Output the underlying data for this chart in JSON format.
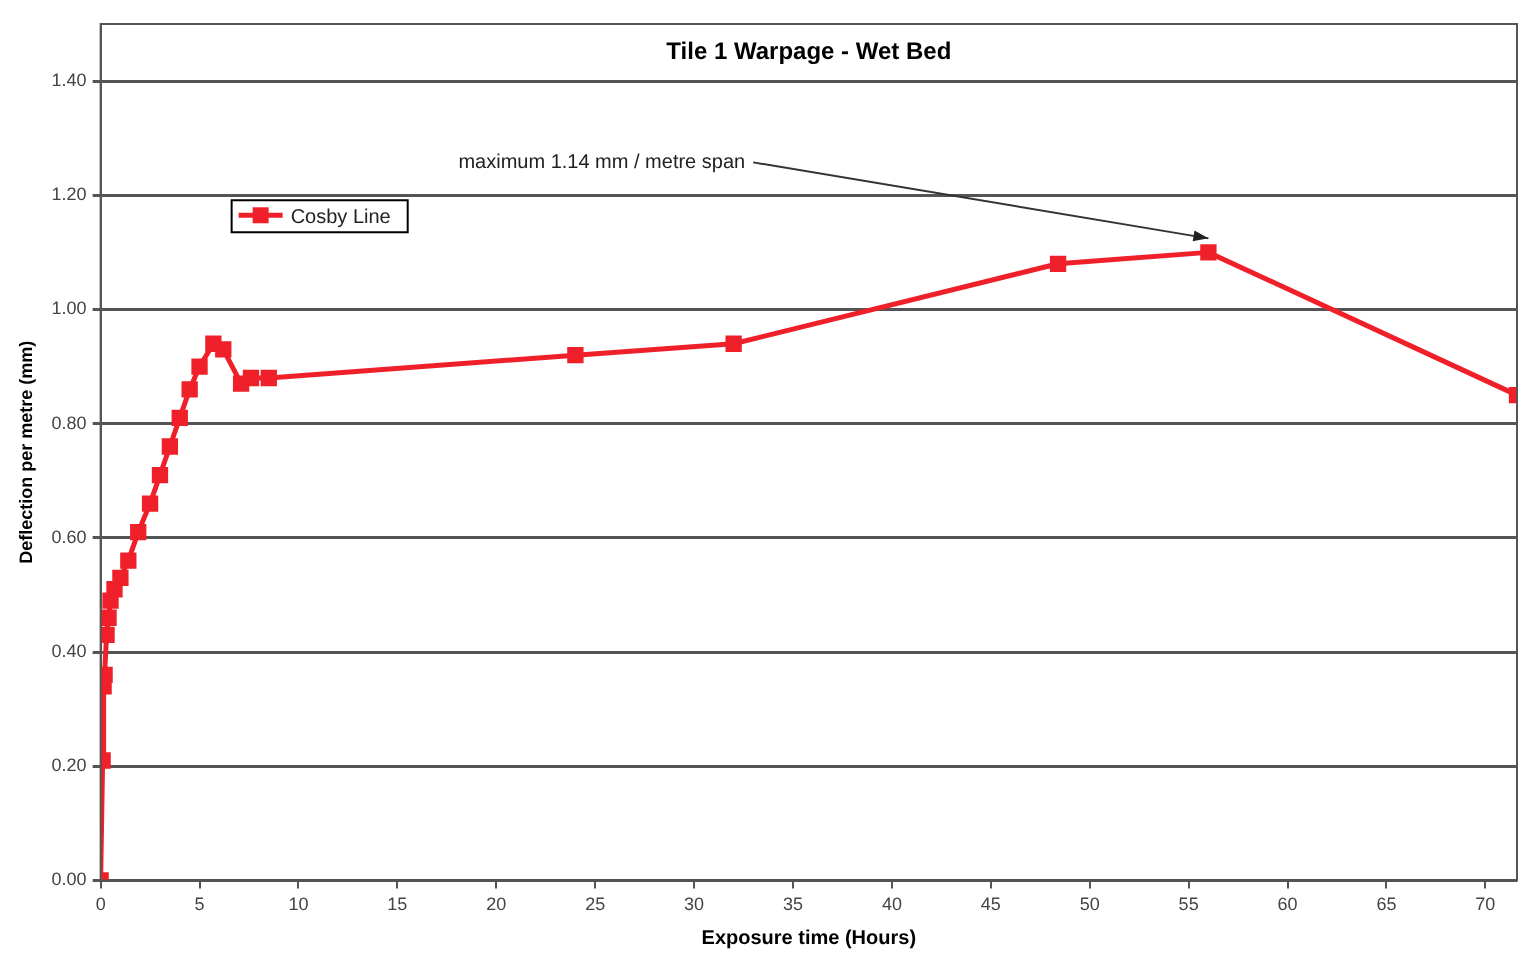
{
  "chart_data": {
    "type": "line",
    "title": "Tile 1 Warpage - Wet Bed",
    "xlabel": "Exposure time (Hours)",
    "ylabel": "Deflection per metre (mm)",
    "xlim": [
      0,
      71.6
    ],
    "xticks": [
      0,
      5,
      10,
      15,
      20,
      25,
      30,
      35,
      40,
      45,
      50,
      55,
      60,
      65,
      70
    ],
    "ylim": [
      0,
      1.5
    ],
    "yticks": [
      {
        "value": 0,
        "label": "0.00"
      },
      {
        "value": 0.2,
        "label": "0.20"
      },
      {
        "value": 0.4,
        "label": "0.40"
      },
      {
        "value": 0.6,
        "label": "0.60"
      },
      {
        "value": 0.8,
        "label": "0.80"
      },
      {
        "value": 1.0,
        "label": "1.00"
      },
      {
        "value": 1.2,
        "label": "1.20"
      },
      {
        "value": 1.4,
        "label": "1.40"
      }
    ],
    "grid": "y",
    "legend": "top left",
    "marker": "square",
    "line_style": "solid",
    "annotations": [
      {
        "text": "maximum 1.14 mm / metre span",
        "x": 56,
        "y": 1.1
      }
    ],
    "series": [
      {
        "name": "Cosby Line",
        "color": "#f0202a",
        "x": [
          0,
          0.1,
          0.15,
          0.2,
          0.3,
          0.4,
          0.5,
          0.7,
          1.0,
          1.4,
          1.9,
          2.5,
          3.0,
          3.5,
          4.0,
          4.5,
          5.0,
          5.7,
          6.2,
          7.1,
          7.6,
          8.5,
          24,
          32,
          48.4,
          56,
          71.6
        ],
        "values": [
          0,
          0.21,
          0.34,
          0.36,
          0.43,
          0.46,
          0.49,
          0.51,
          0.53,
          0.56,
          0.61,
          0.66,
          0.71,
          0.76,
          0.81,
          0.86,
          0.9,
          0.94,
          0.93,
          0.87,
          0.88,
          0.88,
          0.92,
          0.94,
          1.08,
          1.1,
          0.85
        ]
      }
    ]
  }
}
